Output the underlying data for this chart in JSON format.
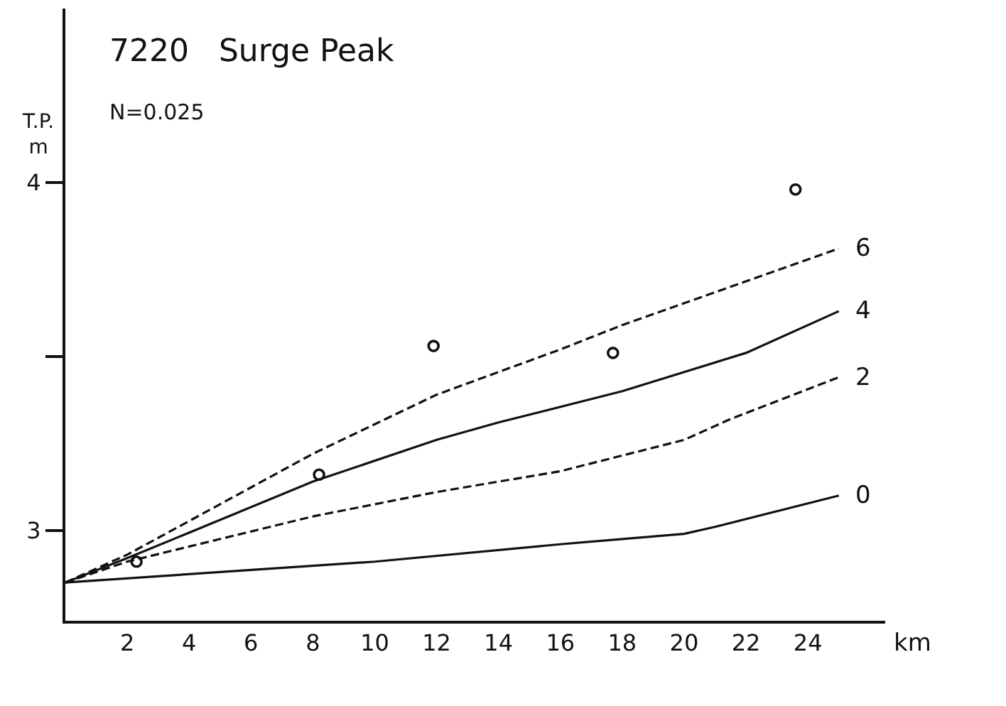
{
  "chart_data": {
    "type": "line",
    "title": "7220   Surge Peak",
    "subtitle": "N=0.025",
    "xlabel": "km",
    "ylabel": "T.P.\nm",
    "xlim": [
      0,
      26.5
    ],
    "ylim": [
      2.74,
      4.5
    ],
    "xticks": [
      2,
      4,
      6,
      8,
      10,
      12,
      14,
      16,
      18,
      20,
      22,
      24
    ],
    "yticks": [
      3,
      {
        "value": 3.5,
        "label": null
      },
      4
    ],
    "legend": false,
    "series": [
      {
        "name": "0",
        "color": "#111111",
        "line_style": "solid",
        "marker": "none",
        "x": [
          0,
          10,
          16,
          20,
          21,
          25
        ],
        "values": [
          2.85,
          2.91,
          2.96,
          2.99,
          3.01,
          3.1
        ]
      },
      {
        "name": "2",
        "color": "#111111",
        "line_style": "dashed",
        "marker": "none",
        "x": [
          0,
          2,
          8,
          12,
          16,
          20,
          21.5,
          25
        ],
        "values": [
          2.85,
          2.91,
          3.04,
          3.11,
          3.17,
          3.26,
          3.32,
          3.44
        ]
      },
      {
        "name": "4",
        "color": "#111111",
        "line_style": "solid",
        "marker": "none",
        "x": [
          0,
          2,
          8,
          12,
          14,
          18,
          22,
          25
        ],
        "values": [
          2.85,
          2.92,
          3.14,
          3.26,
          3.31,
          3.4,
          3.51,
          3.63
        ]
      },
      {
        "name": "6",
        "color": "#111111",
        "line_style": "dashed",
        "marker": "none",
        "x": [
          0,
          2,
          8,
          12,
          16,
          18,
          25
        ],
        "values": [
          2.85,
          2.93,
          3.22,
          3.39,
          3.52,
          3.59,
          3.81
        ]
      },
      {
        "type": "scatter",
        "color": "#111111",
        "marker": "circle",
        "x": [
          2.3,
          8.2,
          11.9,
          17.7,
          23.6
        ],
        "values": [
          2.91,
          3.16,
          3.53,
          3.51,
          3.98
        ]
      }
    ]
  }
}
